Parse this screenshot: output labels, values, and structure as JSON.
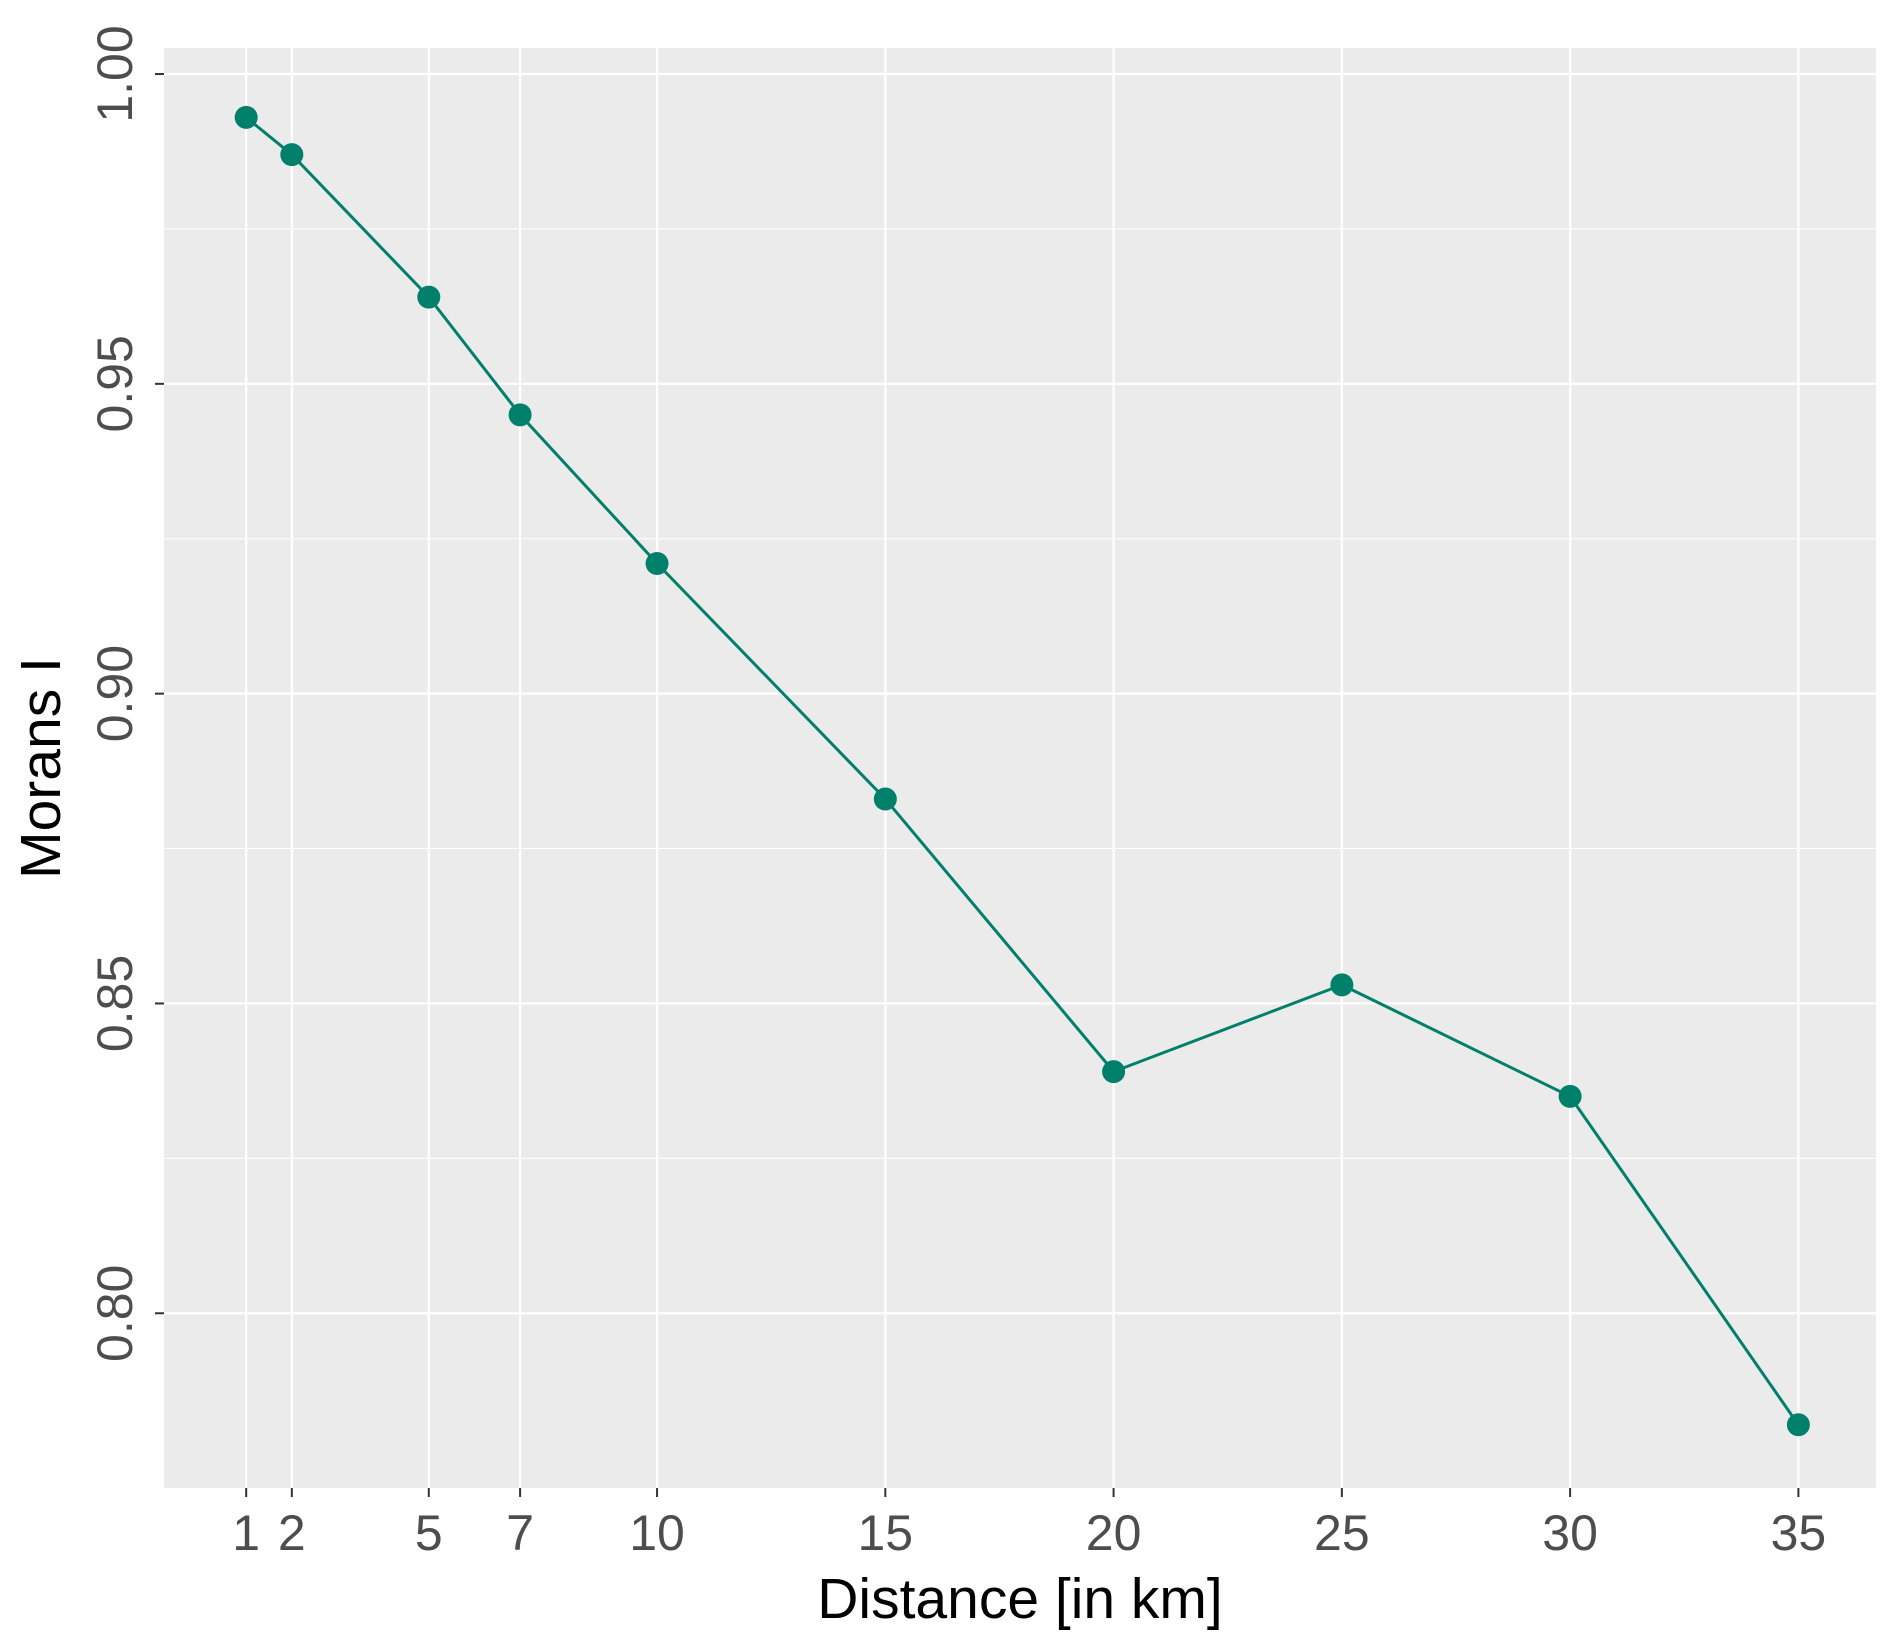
{
  "chart_data": {
    "type": "line",
    "title": "",
    "xlabel": "Distance [in km]",
    "ylabel": "Morans I",
    "x": [
      1,
      2,
      5,
      7,
      10,
      15,
      20,
      25,
      30,
      35
    ],
    "values": [
      0.993,
      0.987,
      0.964,
      0.945,
      0.921,
      0.883,
      0.839,
      0.853,
      0.835,
      0.782
    ],
    "xticks": [
      1,
      2,
      5,
      7,
      10,
      15,
      20,
      25,
      30,
      35
    ],
    "xtick_labels": [
      "1",
      "2",
      "5",
      "7",
      "10",
      "15",
      "20",
      "25",
      "30",
      "35"
    ],
    "yticks": [
      0.8,
      0.85,
      0.9,
      0.95,
      1.0
    ],
    "ytick_labels": [
      "0.80",
      "0.85",
      "0.90",
      "0.95",
      "1.00"
    ],
    "xlim": [
      -0.8,
      36.7
    ],
    "ylim": [
      0.7718,
      1.0042
    ],
    "grid": true,
    "colors": {
      "panel": "#ebebeb",
      "grid": "#ffffff",
      "series": "#00806a",
      "tick": "#333333",
      "tick_text": "#4d4d4d",
      "title_text": "#000000"
    }
  }
}
